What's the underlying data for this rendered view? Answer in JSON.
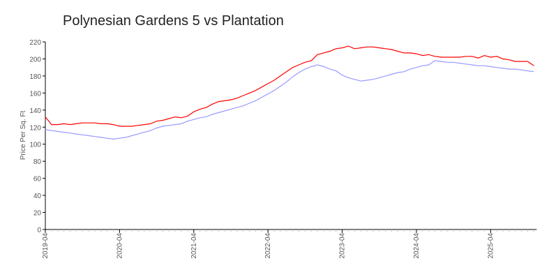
{
  "chart_data": {
    "type": "line",
    "title": "Polynesian Gardens 5 vs Plantation",
    "xlabel": "",
    "ylabel": "Price Per Sq. Ft",
    "ylim": [
      0,
      220
    ],
    "yticks": [
      0,
      20,
      40,
      60,
      80,
      100,
      120,
      140,
      160,
      180,
      200,
      220
    ],
    "xticks": [
      "2019-04",
      "2020-04",
      "2021-04",
      "2022-04",
      "2023-04",
      "2024-04",
      "2025-04"
    ],
    "x_start": "2019-04",
    "x_end": "2025-11",
    "x_frequency": "monthly",
    "grid": false,
    "legend": "none",
    "series": [
      {
        "color": "#ff0000",
        "values": [
          132,
          123,
          123,
          124,
          123,
          124,
          125,
          125,
          125,
          124,
          124,
          123,
          121,
          121,
          121,
          122,
          123,
          124,
          127,
          128,
          130,
          132,
          131,
          133,
          138,
          141,
          143,
          147,
          150,
          151,
          152,
          154,
          157,
          160,
          163,
          167,
          171,
          175,
          180,
          185,
          190,
          193,
          196,
          198,
          205,
          207,
          209,
          212,
          213,
          215,
          212,
          213,
          214,
          214,
          213,
          212,
          211,
          209,
          207,
          207,
          206,
          204,
          205,
          203,
          202,
          202,
          202,
          202,
          203,
          203,
          201,
          204,
          202,
          203,
          200,
          199,
          197,
          197,
          197,
          192
        ]
      },
      {
        "color": "#9999ff",
        "values": [
          117,
          116,
          115,
          114,
          113,
          112,
          111,
          110,
          109,
          108,
          107,
          106,
          107,
          108,
          110,
          112,
          114,
          116,
          119,
          121,
          122,
          123,
          124,
          127,
          129,
          131,
          132,
          135,
          137,
          139,
          141,
          143,
          145,
          148,
          151,
          155,
          159,
          163,
          168,
          173,
          179,
          184,
          188,
          191,
          193,
          191,
          188,
          186,
          181,
          178,
          176,
          174,
          175,
          176,
          178,
          180,
          182,
          184,
          185,
          188,
          190,
          192,
          193,
          198,
          197,
          196,
          196,
          195,
          194,
          193,
          192,
          192,
          191,
          190,
          189,
          188,
          188,
          187,
          186,
          185
        ]
      }
    ]
  }
}
